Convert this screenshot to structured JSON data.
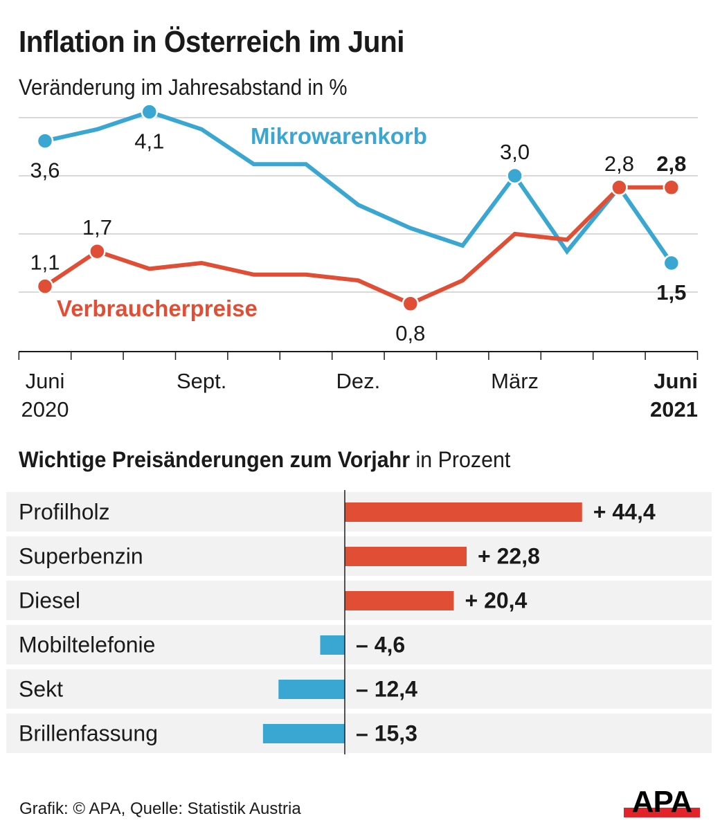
{
  "header": {
    "title": "Inflation in Österreich im Juni",
    "subtitle": "Veränderung im Jahresabstand in %"
  },
  "colors": {
    "mikrowarenkorb": "#3aa7d3",
    "verbraucherpreise": "#e04e35",
    "grid": "#d9d9d9",
    "row_bg": "#f2f2f2",
    "text": "#1a1a1a",
    "logo_red": "#e3232a"
  },
  "chart_data": [
    {
      "type": "line",
      "title": "Inflation in Österreich im Juni",
      "subtitle": "Veränderung im Jahresabstand in %",
      "x": [
        "Jun 2020",
        "Jul 2020",
        "Aug 2020",
        "Sep 2020",
        "Okt 2020",
        "Nov 2020",
        "Dez 2020",
        "Jan 2021",
        "Feb 2021",
        "Mär 2021",
        "Apr 2021",
        "Mai 2021",
        "Jun 2021"
      ],
      "tick_labels": [
        {
          "index": 0,
          "line1": "Juni",
          "line2": "2020",
          "bold": false
        },
        {
          "index": 3,
          "line1": "Sept.",
          "line2": "",
          "bold": false
        },
        {
          "index": 6,
          "line1": "Dez.",
          "line2": "",
          "bold": false
        },
        {
          "index": 9,
          "line1": "März",
          "line2": "",
          "bold": false
        },
        {
          "index": 12,
          "line1": "Juni",
          "line2": "2021",
          "bold": true
        }
      ],
      "ylim": [
        0,
        4.3
      ],
      "gridlines": [
        1,
        2,
        3,
        4
      ],
      "grid": true,
      "series": [
        {
          "name": "Mikrowarenkorb",
          "color": "#3aa7d3",
          "values": [
            3.6,
            3.8,
            4.1,
            3.8,
            3.2,
            3.2,
            2.5,
            2.1,
            1.8,
            3.0,
            1.7,
            2.8,
            1.5
          ],
          "labels": [
            {
              "index": 0,
              "text": "3,6",
              "pos": "below",
              "bold": false
            },
            {
              "index": 2,
              "text": "4,1",
              "pos": "below",
              "bold": false
            },
            {
              "index": 9,
              "text": "3,0",
              "pos": "above",
              "bold": false
            },
            {
              "index": 11,
              "text": "2,8",
              "pos": "above",
              "bold": false
            },
            {
              "index": 12,
              "text": "1,5",
              "pos": "below",
              "bold": true
            }
          ],
          "markers": [
            0,
            2,
            9,
            11,
            12
          ]
        },
        {
          "name": "Verbraucherpreise",
          "color": "#e04e35",
          "values": [
            1.1,
            1.7,
            1.4,
            1.5,
            1.3,
            1.3,
            1.2,
            0.8,
            1.2,
            2.0,
            1.9,
            2.8,
            2.8
          ],
          "labels": [
            {
              "index": 0,
              "text": "1,1",
              "pos": "above",
              "bold": false
            },
            {
              "index": 1,
              "text": "1,7",
              "pos": "above",
              "bold": false
            },
            {
              "index": 7,
              "text": "0,8",
              "pos": "below",
              "bold": false
            },
            {
              "index": 12,
              "text": "2,8",
              "pos": "above",
              "bold": true
            }
          ],
          "markers": [
            0,
            1,
            7,
            11,
            12
          ]
        }
      ],
      "legend": [
        {
          "name": "Mikrowarenkorb",
          "placement": "top-center"
        },
        {
          "name": "Verbraucherpreise",
          "placement": "bottom-left"
        }
      ]
    },
    {
      "type": "bar",
      "orientation": "horizontal",
      "title_bold": "Wichtige Preisänderungen zum Vorjahr",
      "title_rest": " in Prozent",
      "categories": [
        "Profilholz",
        "Superbenzin",
        "Diesel",
        "Mobiltelefonie",
        "Sekt",
        "Brillenfassung"
      ],
      "values": [
        44.4,
        22.8,
        20.4,
        -4.6,
        -12.4,
        -15.3
      ],
      "value_labels": [
        "+ 44,4",
        "+ 22,8",
        "+ 20,4",
        "– 4,6",
        "– 12,4",
        "– 15,3"
      ],
      "xlim": [
        -15.3,
        44.4
      ],
      "positive_color": "#e04e35",
      "negative_color": "#3aa7d3"
    }
  ],
  "footer": {
    "credit": "Grafik: © APA, Quelle: Statistik Austria",
    "logo_text": "APA"
  }
}
